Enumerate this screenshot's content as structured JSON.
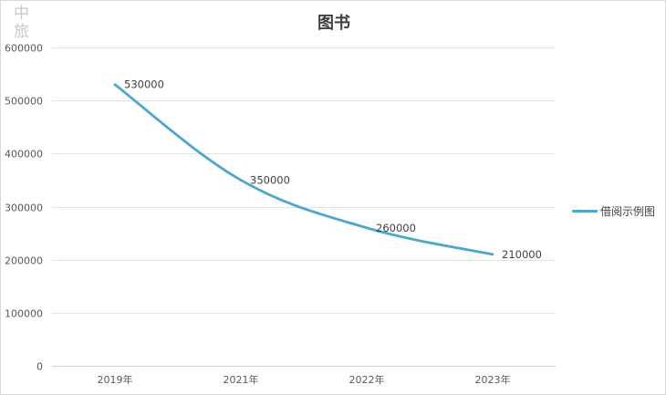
{
  "watermark": [
    "中",
    "旅"
  ],
  "chart_data": {
    "type": "line",
    "title": "图书",
    "xlabel": "",
    "ylabel": "",
    "categories": [
      "2019年",
      "2021年",
      "2022年",
      "2023年"
    ],
    "series": [
      {
        "name": "借阅示例图",
        "values": [
          530000,
          350000,
          260000,
          210000
        ],
        "color": "#4aa8d0"
      }
    ],
    "data_labels": [
      "530000",
      "350000",
      "260000",
      "210000"
    ],
    "ylim": [
      0,
      600000
    ],
    "yticks": [
      "0",
      "100000",
      "200000",
      "300000",
      "400000",
      "500000",
      "600000"
    ],
    "grid": true,
    "smooth": true,
    "legend_position": "right"
  }
}
